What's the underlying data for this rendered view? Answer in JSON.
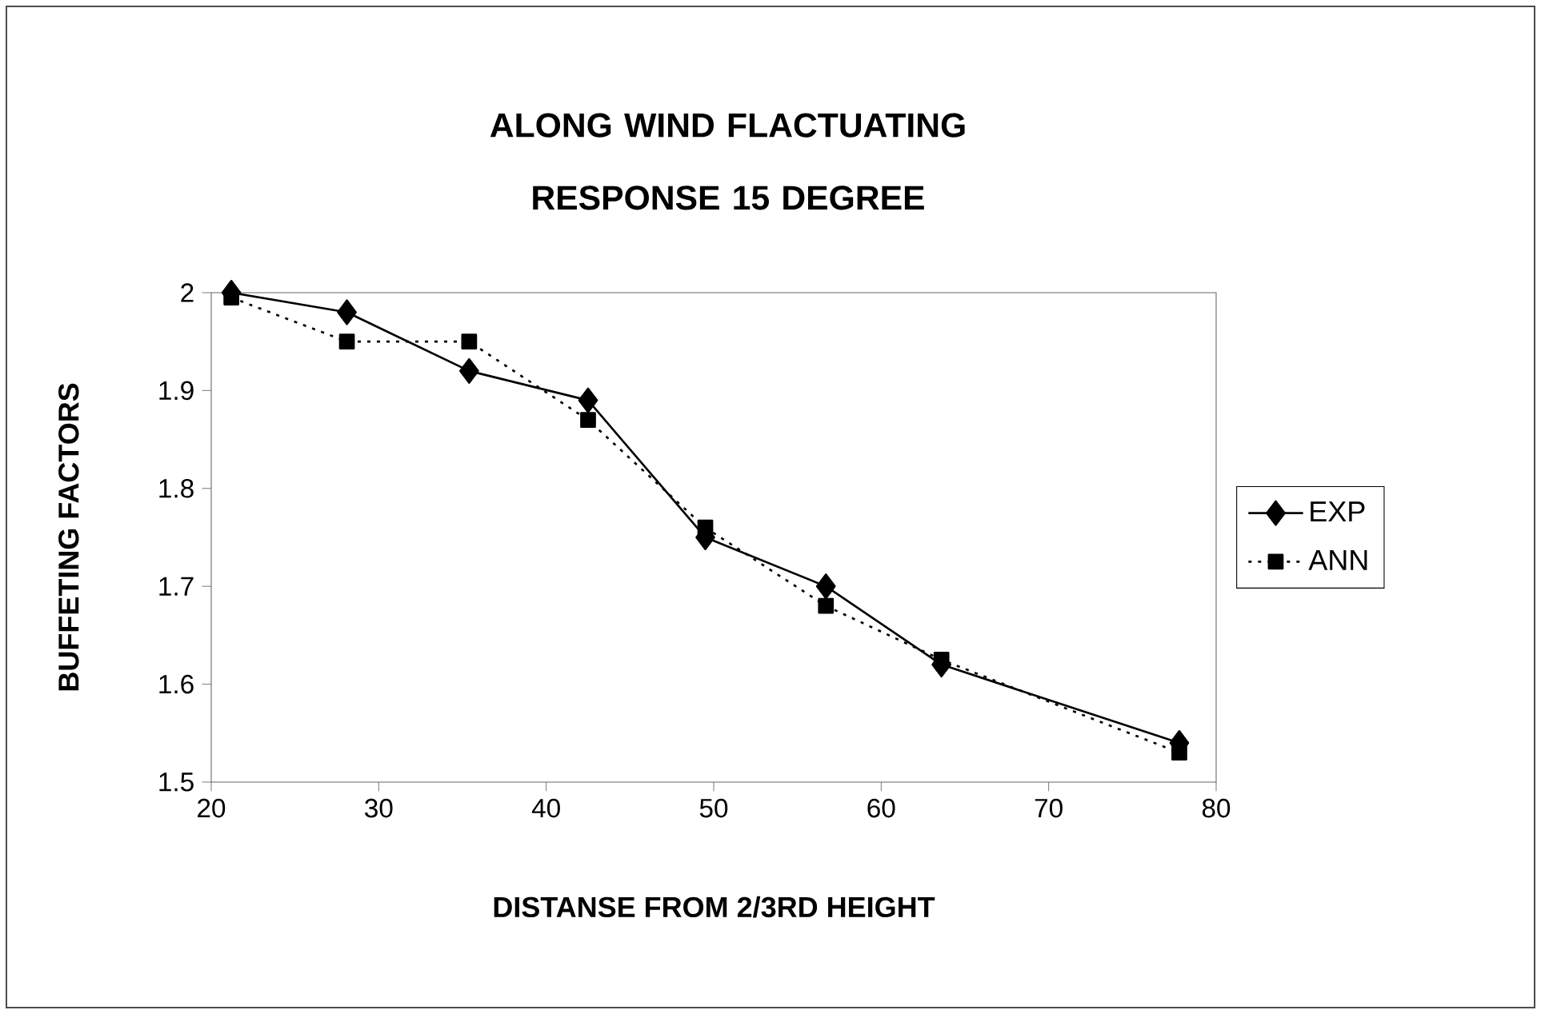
{
  "chart_data": {
    "type": "line",
    "title": "ALONG WIND FLACTUATING RESPONSE 15 DEGREE",
    "xlabel": "DISTANSE FROM 2/3RD HEIGHT",
    "ylabel": "BUFFETING FACTORS",
    "x": [
      21.2,
      28.1,
      35.4,
      42.5,
      49.5,
      56.7,
      63.6,
      77.8
    ],
    "series": [
      {
        "name": "EXP",
        "color": "#000000",
        "marker": "diamond",
        "line_style": "solid",
        "values": [
          2.0,
          1.98,
          1.92,
          1.89,
          1.75,
          1.7,
          1.62,
          1.54
        ]
      },
      {
        "name": "ANN",
        "color": "#000000",
        "marker": "square",
        "line_style": "dotted",
        "values": [
          1.995,
          1.95,
          1.95,
          1.87,
          1.76,
          1.68,
          1.625,
          1.53
        ]
      }
    ],
    "xlim": [
      20,
      80
    ],
    "xticks": [
      20,
      30,
      40,
      50,
      60,
      70,
      80
    ],
    "ylim": [
      1.5,
      2
    ],
    "yticks": [
      1.5,
      1.6,
      1.7,
      1.8,
      1.9,
      2
    ],
    "grid": false,
    "legend": "right"
  }
}
